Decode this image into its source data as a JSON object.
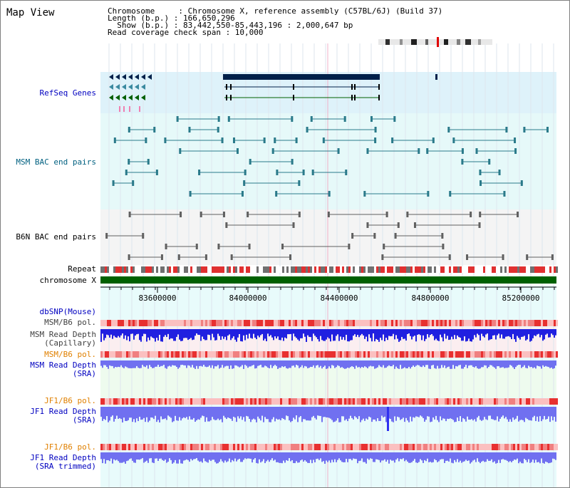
{
  "map_view": {
    "title": "Map View",
    "info": {
      "chromosome": "Chromosome     : Chromosome X, reference assembly (C57BL/6J) (Build 37)",
      "length": "Length (b.p.) : 166,650,296",
      "show": "  Show (b.p.) : 83,442,550-85,443,196 : 2,000,647 bp",
      "coverage": "Read coverage check span : 10,000"
    },
    "tracks": {
      "refseq": "RefSeq Genes",
      "msm_bac": "MSM BAC end pairs",
      "b6n_bac": "B6N BAC end pairs",
      "repeat": "Repeat",
      "chromosome": "chromosome X",
      "dbsnp": "dbSNP(Mouse)",
      "msm_b6_pol_1": "MSM/B6 pol.",
      "msm_depth_cap_1": "MSM Read Depth",
      "msm_depth_cap_2": "(Capillary)",
      "msm_b6_pol_2": "MSM/B6 pol.",
      "msm_depth_sra_1": "MSM Read Depth",
      "msm_depth_sra_2": "(SRA)",
      "jf1_b6_pol_1": "JF1/B6 pol.",
      "jf1_depth_sra_1": "JF1 Read Depth",
      "jf1_depth_sra_2": "(SRA)",
      "jf1_b6_pol_2": "JF1/B6 pol.",
      "jf1_depth_trim_1": "JF1 Read Depth",
      "jf1_depth_trim_2": "(SRA trimmed)"
    },
    "axis": {
      "ticks": [
        "83600000",
        "84000000",
        "84400000",
        "84800000",
        "85200000"
      ]
    },
    "colors": {
      "refseq_bg": "#def2fa",
      "msm_bac_bg": "#e6f9f9",
      "b6n_bac_bg": "#f4f4f4",
      "lower_bg": "#e8fbfb",
      "pink_bg": "#fbeef0",
      "green_bg": "#eefbee",
      "label_blue": "#0000c0",
      "label_teal": "#006080",
      "label_orange": "#e08000",
      "label_dark": "#000000",
      "gene_navy": "#00204a",
      "gene_green": "#006000",
      "bac_teal": "#2a7a8a",
      "bac_gray": "#606060",
      "chromosome_green": "#006000",
      "depth_blue": "#2020e0",
      "depth_light_blue": "#7070f0",
      "pol_red": "#e83030"
    }
  }
}
